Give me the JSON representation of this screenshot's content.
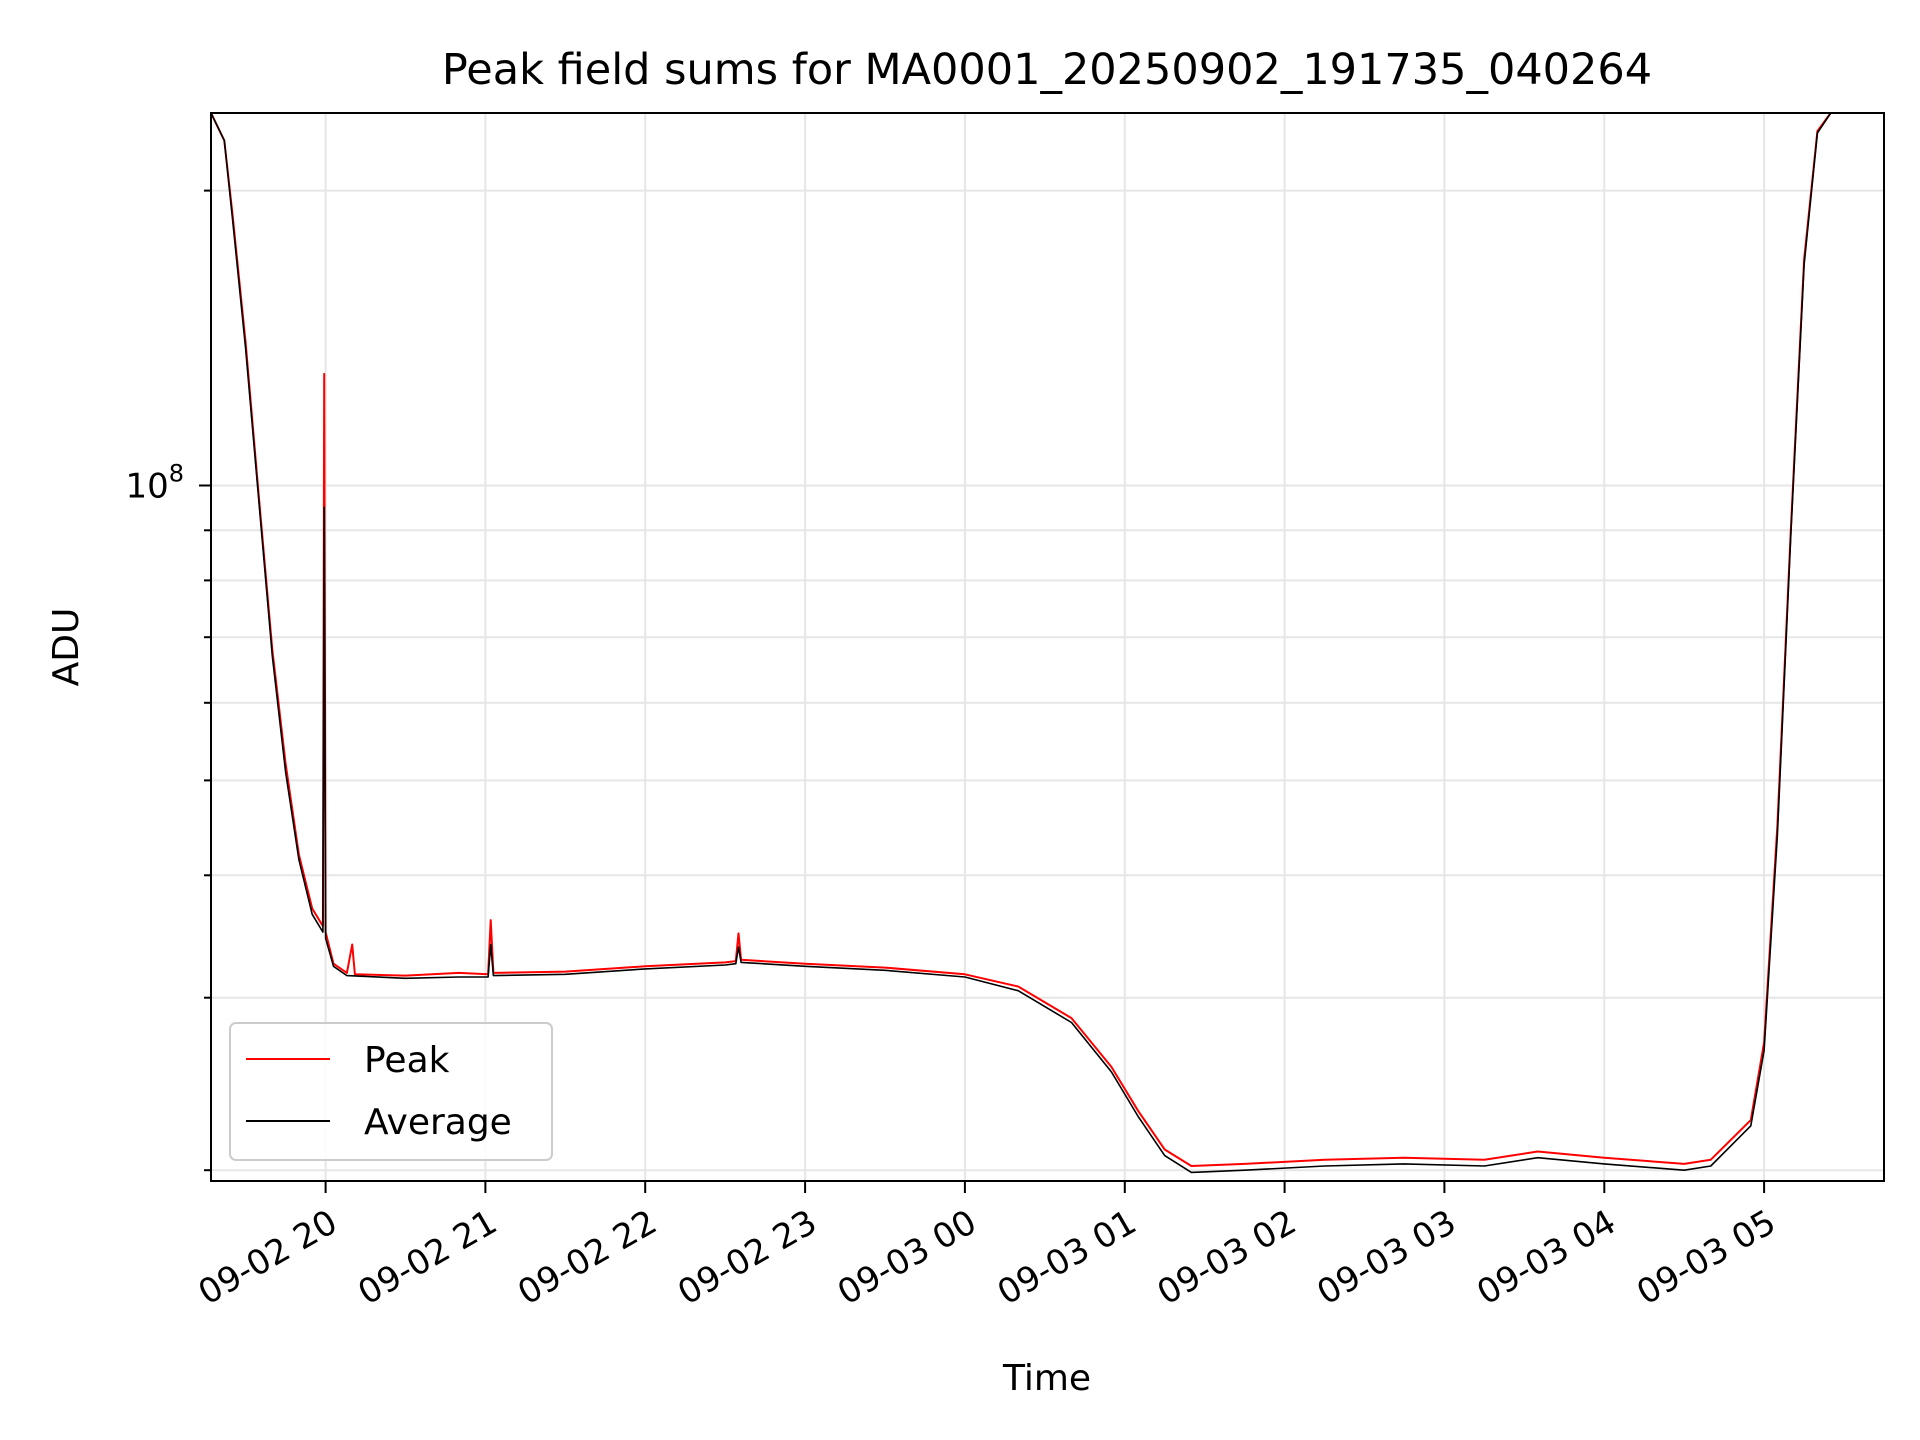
{
  "chart_data": {
    "type": "line",
    "title": "Peak field sums for MA0001_20250902_191735_040264",
    "xlabel": "Time",
    "ylabel": "ADU",
    "yscale": "log",
    "grid": true,
    "legend_position": "lower-left",
    "x_ticks": [
      "09-02 20",
      "09-02 21",
      "09-02 22",
      "09-02 23",
      "09-03 00",
      "09-03 01",
      "09-03 02",
      "09-03 03",
      "09-03 04",
      "09-03 05"
    ],
    "y_tick_labels": [
      {
        "value": 100000000,
        "base": "10",
        "exponent": "8"
      }
    ],
    "xlim": [
      "2025-09-02 19:17",
      "2025-09-03 05:45"
    ],
    "ylim": [
      19500000,
      240000000
    ],
    "series": [
      {
        "name": "Peak",
        "color": "#ff0000",
        "points": [
          [
            "2025-09-02 19:17",
            240000000
          ],
          [
            "2025-09-02 19:22",
            225000000
          ],
          [
            "2025-09-02 19:25",
            190000000
          ],
          [
            "2025-09-02 19:30",
            140000000
          ],
          [
            "2025-09-02 19:35",
            97000000
          ],
          [
            "2025-09-02 19:40",
            68000000
          ],
          [
            "2025-09-02 19:45",
            52000000
          ],
          [
            "2025-09-02 19:50",
            42000000
          ],
          [
            "2025-09-02 19:55",
            37000000
          ],
          [
            "2025-09-02 19:59",
            35500000
          ],
          [
            "2025-09-02 19:59:30",
            130000000
          ],
          [
            "2025-09-02 20:00",
            35000000
          ],
          [
            "2025-09-02 20:03",
            32500000
          ],
          [
            "2025-09-02 20:08",
            31800000
          ],
          [
            "2025-09-02 20:10",
            34000000
          ],
          [
            "2025-09-02 20:11",
            31700000
          ],
          [
            "2025-09-02 20:30",
            31600000
          ],
          [
            "2025-09-02 20:50",
            31800000
          ],
          [
            "2025-09-02 21:01",
            31700000
          ],
          [
            "2025-09-02 21:02",
            36000000
          ],
          [
            "2025-09-02 21:03",
            31800000
          ],
          [
            "2025-09-02 21:30",
            31900000
          ],
          [
            "2025-09-02 22:00",
            32300000
          ],
          [
            "2025-09-02 22:30",
            32600000
          ],
          [
            "2025-09-02 22:34",
            32700000
          ],
          [
            "2025-09-02 22:35",
            34900000
          ],
          [
            "2025-09-02 22:36",
            32800000
          ],
          [
            "2025-09-02 23:00",
            32500000
          ],
          [
            "2025-09-02 23:30",
            32200000
          ],
          [
            "2025-09-03 00:00",
            31700000
          ],
          [
            "2025-09-03 00:20",
            30800000
          ],
          [
            "2025-09-03 00:40",
            28600000
          ],
          [
            "2025-09-03 00:55",
            25500000
          ],
          [
            "2025-09-03 01:05",
            23000000
          ],
          [
            "2025-09-03 01:15",
            21000000
          ],
          [
            "2025-09-03 01:25",
            20200000
          ],
          [
            "2025-09-03 01:45",
            20300000
          ],
          [
            "2025-09-03 02:15",
            20500000
          ],
          [
            "2025-09-03 02:45",
            20600000
          ],
          [
            "2025-09-03 03:15",
            20500000
          ],
          [
            "2025-09-03 03:35",
            20900000
          ],
          [
            "2025-09-03 04:00",
            20600000
          ],
          [
            "2025-09-03 04:30",
            20300000
          ],
          [
            "2025-09-03 04:40",
            20500000
          ],
          [
            "2025-09-03 04:55",
            22500000
          ],
          [
            "2025-09-03 05:00",
            27000000
          ],
          [
            "2025-09-03 05:05",
            45000000
          ],
          [
            "2025-09-03 05:10",
            90000000
          ],
          [
            "2025-09-03 05:15",
            170000000
          ],
          [
            "2025-09-03 05:20",
            230000000
          ],
          [
            "2025-09-03 05:25",
            240000000
          ],
          [
            "2025-09-03 05:45",
            240000000
          ]
        ]
      },
      {
        "name": "Average",
        "color": "#000000",
        "points": [
          [
            "2025-09-02 19:17",
            240000000
          ],
          [
            "2025-09-02 19:22",
            225000000
          ],
          [
            "2025-09-02 19:25",
            188000000
          ],
          [
            "2025-09-02 19:30",
            138000000
          ],
          [
            "2025-09-02 19:35",
            96000000
          ],
          [
            "2025-09-02 19:40",
            67000000
          ],
          [
            "2025-09-02 19:45",
            51000000
          ],
          [
            "2025-09-02 19:50",
            41500000
          ],
          [
            "2025-09-02 19:55",
            36500000
          ],
          [
            "2025-09-02 19:59",
            35000000
          ],
          [
            "2025-09-02 19:59:30",
            95000000
          ],
          [
            "2025-09-02 20:00",
            34500000
          ],
          [
            "2025-09-02 20:03",
            32300000
          ],
          [
            "2025-09-02 20:08",
            31600000
          ],
          [
            "2025-09-02 20:30",
            31400000
          ],
          [
            "2025-09-02 20:50",
            31500000
          ],
          [
            "2025-09-02 21:01",
            31500000
          ],
          [
            "2025-09-02 21:02",
            34000000
          ],
          [
            "2025-09-02 21:03",
            31600000
          ],
          [
            "2025-09-02 21:30",
            31700000
          ],
          [
            "2025-09-02 22:00",
            32100000
          ],
          [
            "2025-09-02 22:30",
            32400000
          ],
          [
            "2025-09-02 22:34",
            32500000
          ],
          [
            "2025-09-02 22:35",
            33800000
          ],
          [
            "2025-09-02 22:36",
            32600000
          ],
          [
            "2025-09-02 23:00",
            32300000
          ],
          [
            "2025-09-02 23:30",
            32000000
          ],
          [
            "2025-09-03 00:00",
            31500000
          ],
          [
            "2025-09-03 00:20",
            30500000
          ],
          [
            "2025-09-03 00:40",
            28300000
          ],
          [
            "2025-09-03 00:55",
            25200000
          ],
          [
            "2025-09-03 01:05",
            22700000
          ],
          [
            "2025-09-03 01:15",
            20700000
          ],
          [
            "2025-09-03 01:25",
            19900000
          ],
          [
            "2025-09-03 01:45",
            20000000
          ],
          [
            "2025-09-03 02:15",
            20200000
          ],
          [
            "2025-09-03 02:45",
            20300000
          ],
          [
            "2025-09-03 03:15",
            20200000
          ],
          [
            "2025-09-03 03:35",
            20600000
          ],
          [
            "2025-09-03 04:00",
            20300000
          ],
          [
            "2025-09-03 04:30",
            20000000
          ],
          [
            "2025-09-03 04:40",
            20200000
          ],
          [
            "2025-09-03 04:55",
            22200000
          ],
          [
            "2025-09-03 05:00",
            26500000
          ],
          [
            "2025-09-03 05:05",
            44000000
          ],
          [
            "2025-09-03 05:10",
            89000000
          ],
          [
            "2025-09-03 05:15",
            168000000
          ],
          [
            "2025-09-03 05:20",
            229000000
          ],
          [
            "2025-09-03 05:25",
            240000000
          ],
          [
            "2025-09-03 05:45",
            240000000
          ]
        ]
      }
    ]
  }
}
